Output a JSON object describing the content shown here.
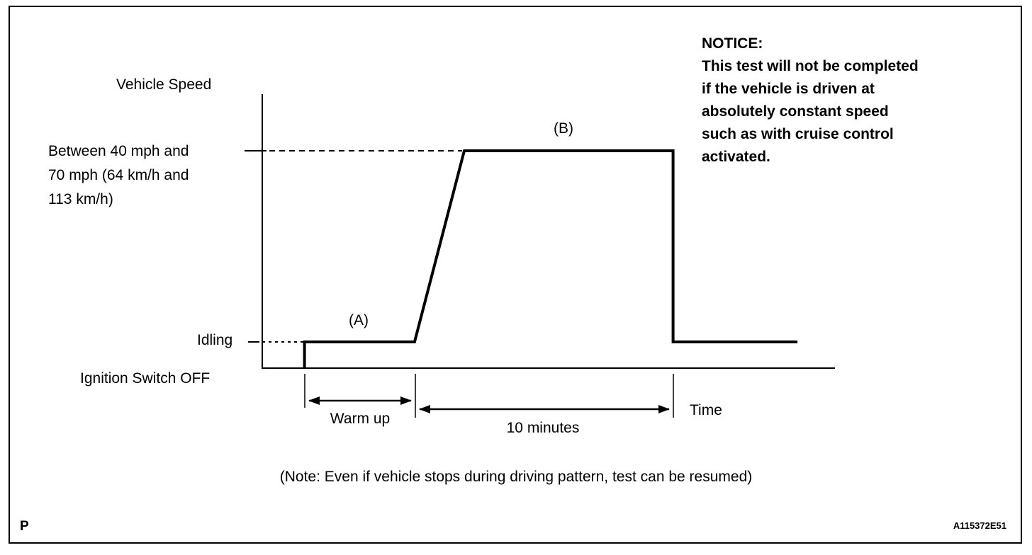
{
  "figure": {
    "page_marker": "P",
    "figure_code": "A115372E51"
  },
  "notice": {
    "title": "NOTICE:",
    "lines": [
      "This test will not be completed",
      "if the vehicle is driven at",
      "absolutely constant speed",
      "such as with cruise control",
      "activated."
    ]
  },
  "footnote": "(Note: Even if vehicle stops during driving pattern, test can be resumed)",
  "chart": {
    "y_axis_label": "Vehicle Speed",
    "x_axis_label": "Time",
    "speed_band_label": [
      "Between 40 mph and",
      "70 mph (64 km/h and",
      "113 km/h)"
    ],
    "idling_label": "Idling",
    "ignition_label": "Ignition Switch OFF",
    "phase_a_label": "(A)",
    "phase_b_label": "(B)",
    "warm_up_label": "Warm up",
    "duration_label": "10 minutes"
  },
  "chart_data": {
    "type": "line",
    "title": "Driving pattern: vehicle speed vs. time",
    "xlabel": "Time",
    "ylabel": "Vehicle Speed",
    "grid": false,
    "y_levels": {
      "off": "Ignition Switch OFF",
      "idling": "Idling",
      "high": "Between 40 mph and 70 mph (64 km/h and 113 km/h)"
    },
    "phases": [
      {
        "id": "(A)",
        "level": "idling",
        "duration": "Warm up"
      },
      {
        "id": "(B)",
        "level": "high",
        "duration": "10 minutes"
      }
    ],
    "line_color": "#000000",
    "polyline": [
      {
        "x": 0.074,
        "level": "off"
      },
      {
        "x": 0.074,
        "level": "idling"
      },
      {
        "x": 0.267,
        "level": "idling"
      },
      {
        "x": 0.354,
        "level": "high"
      },
      {
        "x": 0.72,
        "level": "high"
      },
      {
        "x": 0.72,
        "level": "idling"
      },
      {
        "x": 0.938,
        "level": "idling"
      }
    ]
  }
}
